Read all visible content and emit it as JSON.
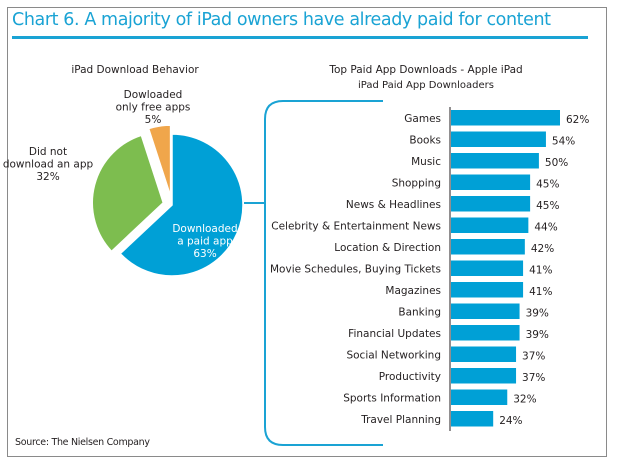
{
  "title": "Chart 6. A majority of iPad owners have already paid for content",
  "source": "Source: The Nielsen Company",
  "colors": {
    "accent": "#1aa3d4",
    "paid": "#00a0d6",
    "not_downloaded": "#7dbd4f",
    "free_only": "#f0a64b",
    "bar": "#00a0d6",
    "border": "#8a8a8a"
  },
  "chart_data": [
    {
      "type": "pie",
      "title": "iPad Download Behavior",
      "slices": [
        {
          "label_lines": [
            "Downloaded",
            "a paid app",
            "63%"
          ],
          "label": "Downloaded a paid app",
          "value": 63,
          "color_key": "paid",
          "exploded": false
        },
        {
          "label_lines": [
            "Did not",
            "download an app",
            "32%"
          ],
          "label": "Did not download an app",
          "value": 32,
          "color_key": "not_downloaded",
          "exploded": true
        },
        {
          "label_lines": [
            "Dowloaded",
            "only free apps",
            "5%"
          ],
          "label": "Dowloaded only free apps",
          "value": 5,
          "color_key": "free_only",
          "exploded": true
        }
      ],
      "start": "top",
      "direction": "clockwise"
    },
    {
      "type": "bar",
      "orientation": "horizontal",
      "title": "Top Paid App Downloads - Apple iPad",
      "subtitle": "iPad Paid App Downloaders",
      "categories": [
        "Games",
        "Books",
        "Music",
        "Shopping",
        "News & Headlines",
        "Celebrity & Entertainment News",
        "Location & Direction",
        "Movie Schedules, Buying Tickets",
        "Magazines",
        "Banking",
        "Financial Updates",
        "Social Networking",
        "Productivity",
        "Sports Information",
        "Travel Planning"
      ],
      "values": [
        62,
        54,
        50,
        45,
        45,
        44,
        42,
        41,
        41,
        39,
        39,
        37,
        37,
        32,
        24
      ],
      "value_suffix": "%",
      "xlim": [
        0,
        100
      ],
      "grid": false,
      "legend": "none"
    }
  ]
}
